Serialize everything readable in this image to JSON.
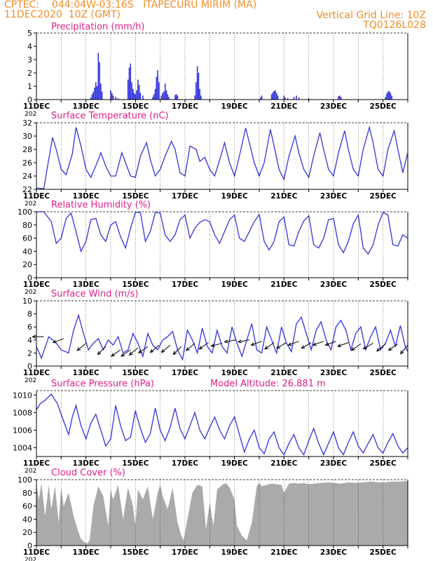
{
  "header": {
    "line1_left": "CPTEC:    044:04W-03:16S   ITAPECURU MIRIM (MA)",
    "line2_left": "11DEC2020  10Z (GMT)",
    "line1_right": "Vertical Grid Line: 10Z",
    "line2_right": "TQ0126L028",
    "cut_label": "202"
  },
  "colors": {
    "header": "#f08c28",
    "title": "#e0208a",
    "series": "#3333dd",
    "cloud": "#aaaaaa",
    "grid": "#000000"
  },
  "date_labels": [
    "11DEC",
    "13DEC",
    "15DEC",
    "17DEC",
    "19DEC",
    "21DEC",
    "23DEC",
    "25DEC"
  ],
  "chart_data": [
    {
      "type": "bar",
      "title": "Precipitation (mm/h)",
      "ylim": [
        0,
        5
      ],
      "yticks": [
        "0",
        "1",
        "2",
        "3",
        "4",
        "5"
      ],
      "days": 15,
      "x": [
        2.2,
        2.25,
        2.3,
        2.35,
        2.4,
        2.45,
        2.5,
        2.55,
        2.6,
        2.65,
        3.0,
        3.05,
        3.1,
        3.2,
        3.3,
        3.7,
        3.75,
        3.8,
        3.85,
        3.9,
        3.95,
        4.0,
        4.05,
        4.1,
        4.15,
        4.2,
        4.3,
        4.7,
        4.75,
        4.8,
        4.85,
        4.9,
        4.95,
        5.05,
        5.1,
        5.15,
        5.2,
        5.25,
        5.3,
        5.35,
        5.6,
        5.65,
        5.7,
        6.4,
        6.45,
        6.5,
        6.55,
        6.6,
        6.65,
        9.05,
        9.1,
        9.5,
        9.55,
        9.6,
        9.65,
        9.7,
        9.75,
        10.0,
        10.05,
        10.15,
        10.4,
        10.5,
        10.6,
        11.0,
        12.2,
        12.25,
        12.3,
        14.1,
        14.15,
        14.2,
        14.25,
        14.3,
        14.35
      ],
      "values": [
        0.15,
        0.4,
        0.6,
        0.9,
        1.3,
        1.0,
        3.5,
        2.8,
        1.2,
        0.6,
        0.7,
        0.5,
        0.3,
        0.2,
        0.1,
        1.5,
        2.4,
        2.7,
        1.3,
        0.8,
        0.5,
        0.4,
        0.7,
        1.5,
        1.1,
        0.5,
        0.3,
        0.2,
        0.4,
        0.8,
        1.7,
        2.2,
        1.3,
        0.3,
        0.5,
        0.6,
        1.2,
        0.7,
        0.4,
        0.2,
        0.35,
        0.4,
        0.3,
        0.3,
        1.3,
        2.5,
        2.0,
        0.8,
        0.3,
        0.15,
        0.3,
        0.4,
        0.55,
        0.65,
        0.7,
        0.5,
        0.3,
        0.3,
        0.15,
        0.1,
        0.2,
        0.3,
        0.15,
        0.1,
        0.25,
        0.3,
        0.2,
        0.2,
        0.45,
        0.6,
        0.65,
        0.5,
        0.3
      ]
    },
    {
      "type": "line",
      "title": "Surface Temperature (nC)",
      "ylim": [
        22,
        32
      ],
      "yticks": [
        "22",
        "24",
        "26",
        "28",
        "30",
        "32"
      ],
      "days": 15,
      "x": [
        0,
        0.3,
        0.45,
        0.65,
        0.8,
        1.0,
        1.2,
        1.45,
        1.6,
        1.8,
        2.0,
        2.2,
        2.45,
        2.6,
        2.8,
        3.0,
        3.2,
        3.45,
        3.6,
        3.8,
        4.0,
        4.2,
        4.45,
        4.6,
        4.8,
        5.0,
        5.2,
        5.45,
        5.6,
        5.8,
        6.0,
        6.2,
        6.45,
        6.6,
        6.8,
        7.0,
        7.2,
        7.45,
        7.6,
        7.8,
        8.0,
        8.2,
        8.45,
        8.6,
        8.8,
        9.0,
        9.2,
        9.45,
        9.6,
        9.8,
        10.0,
        10.2,
        10.45,
        10.6,
        10.8,
        11.0,
        11.2,
        11.45,
        11.6,
        11.8,
        12.0,
        12.2,
        12.45,
        12.6,
        12.8,
        13.0,
        13.2,
        13.45,
        13.6,
        13.8,
        14.0,
        14.2,
        14.45,
        14.6,
        14.8,
        15.0
      ],
      "values": [
        22.2,
        22.1,
        25.5,
        29.8,
        28.0,
        25.0,
        24.2,
        27.3,
        31.3,
        28.5,
        25.0,
        23.8,
        26.0,
        27.5,
        25.5,
        24.0,
        24.0,
        27.5,
        26.0,
        24.0,
        23.8,
        27.0,
        29.0,
        26.5,
        24.0,
        25.0,
        27.0,
        29.2,
        28.0,
        24.5,
        24.0,
        28.5,
        28.0,
        26.2,
        26.8,
        25.0,
        24.0,
        27.0,
        29.0,
        26.0,
        24.0,
        27.0,
        31.2,
        29.0,
        26.0,
        24.0,
        26.0,
        31.0,
        28.5,
        25.0,
        23.5,
        27.0,
        30.0,
        27.5,
        25.0,
        23.8,
        27.0,
        30.5,
        28.0,
        25.0,
        24.0,
        27.5,
        30.8,
        28.0,
        25.0,
        24.0,
        28.0,
        31.3,
        29.0,
        25.0,
        24.0,
        28.0,
        30.8,
        28.0,
        24.5,
        27.5
      ]
    },
    {
      "type": "line",
      "title": "Relative Humidity (%)",
      "ylim": [
        0,
        100
      ],
      "yticks": [
        "0",
        "20",
        "40",
        "60",
        "80",
        "100"
      ],
      "days": 15,
      "x": [
        0,
        0.3,
        0.6,
        0.8,
        1.0,
        1.2,
        1.4,
        1.6,
        1.8,
        2.0,
        2.2,
        2.4,
        2.6,
        2.8,
        3.0,
        3.2,
        3.4,
        3.6,
        3.8,
        4.0,
        4.2,
        4.4,
        4.6,
        4.8,
        5.0,
        5.2,
        5.4,
        5.6,
        5.8,
        6.0,
        6.2,
        6.4,
        6.6,
        6.8,
        7.0,
        7.2,
        7.4,
        7.6,
        7.8,
        8.0,
        8.2,
        8.4,
        8.6,
        8.8,
        9.0,
        9.2,
        9.4,
        9.6,
        9.8,
        10.0,
        10.2,
        10.4,
        10.6,
        10.8,
        11.0,
        11.2,
        11.4,
        11.6,
        11.8,
        12.0,
        12.2,
        12.4,
        12.6,
        12.8,
        13.0,
        13.2,
        13.4,
        13.6,
        13.8,
        14.0,
        14.2,
        14.4,
        14.6,
        14.8,
        15.0
      ],
      "values": [
        100,
        100,
        85,
        52,
        60,
        90,
        98,
        70,
        40,
        55,
        88,
        90,
        65,
        55,
        80,
        85,
        62,
        45,
        75,
        99,
        99,
        55,
        70,
        99,
        98,
        65,
        55,
        65,
        88,
        95,
        60,
        75,
        84,
        88,
        85,
        65,
        52,
        70,
        88,
        95,
        60,
        55,
        70,
        85,
        96,
        55,
        42,
        55,
        85,
        92,
        50,
        48,
        70,
        86,
        94,
        50,
        45,
        60,
        88,
        90,
        50,
        38,
        55,
        82,
        95,
        45,
        36,
        50,
        80,
        99,
        95,
        50,
        48,
        65,
        60
      ]
    },
    {
      "type": "line",
      "title": "Surface Wind (m/s)",
      "ylim": [
        0,
        10
      ],
      "yticks": [
        "0",
        "2",
        "4",
        "6",
        "8",
        "10"
      ],
      "days": 15,
      "x": [
        0,
        0.2,
        0.5,
        0.8,
        1.0,
        1.3,
        1.5,
        1.7,
        1.9,
        2.1,
        2.3,
        2.5,
        2.7,
        2.9,
        3.1,
        3.3,
        3.5,
        3.7,
        3.9,
        4.1,
        4.3,
        4.5,
        4.7,
        4.9,
        5.1,
        5.3,
        5.5,
        5.7,
        5.9,
        6.1,
        6.3,
        6.5,
        6.7,
        6.9,
        7.1,
        7.3,
        7.5,
        7.7,
        7.9,
        8.1,
        8.3,
        8.5,
        8.7,
        8.9,
        9.1,
        9.3,
        9.5,
        9.7,
        9.9,
        10.1,
        10.3,
        10.5,
        10.7,
        10.9,
        11.1,
        11.3,
        11.5,
        11.7,
        11.9,
        12.1,
        12.3,
        12.5,
        12.7,
        12.9,
        13.1,
        13.3,
        13.5,
        13.7,
        13.9,
        14.1,
        14.3,
        14.5,
        14.7,
        14.9,
        15.0
      ],
      "values": [
        3.0,
        1.2,
        4.5,
        3.5,
        2.5,
        2.0,
        5.5,
        7.8,
        5.0,
        2.5,
        3.5,
        4.2,
        2.5,
        4.0,
        3.2,
        4.5,
        2.0,
        2.5,
        5.0,
        3.5,
        1.5,
        5.0,
        3.2,
        2.5,
        4.0,
        4.5,
        5.3,
        2.5,
        1.0,
        5.5,
        4.0,
        2.0,
        5.8,
        3.0,
        2.0,
        5.5,
        3.0,
        2.0,
        6.0,
        3.5,
        1.5,
        4.0,
        6.5,
        2.5,
        2.0,
        6.0,
        4.0,
        2.0,
        6.0,
        3.5,
        2.2,
        6.5,
        7.5,
        5.0,
        2.5,
        5.5,
        6.8,
        4.0,
        2.5,
        6.0,
        7.0,
        5.5,
        2.5,
        5.0,
        6.0,
        2.5,
        4.5,
        6.0,
        2.5,
        3.5,
        5.5,
        3.0,
        6.2,
        3.0,
        2.2
      ],
      "arrows": {
        "x": [
          0.3,
          1.1,
          2.0,
          2.8,
          3.4,
          3.8,
          4.1,
          4.5,
          4.95,
          5.4,
          5.85,
          6.4,
          6.95,
          7.5,
          8.05,
          8.6,
          9.1,
          9.6,
          10.1,
          10.6,
          11.1,
          11.6,
          12.1,
          12.6,
          13.1,
          13.6,
          14.1,
          14.6,
          15.0
        ],
        "dir_deg": [
          180,
          200,
          220,
          225,
          215,
          215,
          220,
          215,
          220,
          220,
          225,
          220,
          215,
          195,
          190,
          190,
          200,
          215,
          210,
          200,
          210,
          200,
          200,
          200,
          215,
          210,
          220,
          215,
          230
        ],
        "speed": [
          4.5,
          4.2,
          3.5,
          3.0,
          2.5,
          2.5,
          2.8,
          3.0,
          3.2,
          3.2,
          3.0,
          3.5,
          3.6,
          3.5,
          4.0,
          4.0,
          3.8,
          3.6,
          3.6,
          3.8,
          3.6,
          3.8,
          3.8,
          3.6,
          3.4,
          3.5,
          3.4,
          3.4,
          3.2
        ]
      }
    },
    {
      "type": "line",
      "title": "Surface Pressure (hPa)",
      "annotation": "Model Altitude:  26.881  m",
      "ylim": [
        1003,
        1010.5
      ],
      "yticks": [
        "1004",
        "1006",
        "1008",
        "1010"
      ],
      "days": 15,
      "x": [
        0,
        0.15,
        0.35,
        0.6,
        0.85,
        1.1,
        1.3,
        1.45,
        1.6,
        1.8,
        2.0,
        2.2,
        2.4,
        2.6,
        2.8,
        3.0,
        3.2,
        3.4,
        3.6,
        3.8,
        4.0,
        4.2,
        4.4,
        4.6,
        4.8,
        5.0,
        5.2,
        5.4,
        5.6,
        5.8,
        6.0,
        6.2,
        6.4,
        6.6,
        6.8,
        7.0,
        7.2,
        7.4,
        7.6,
        7.8,
        8.0,
        8.2,
        8.4,
        8.6,
        8.8,
        9.0,
        9.2,
        9.4,
        9.6,
        9.8,
        10.0,
        10.2,
        10.4,
        10.6,
        10.8,
        11.0,
        11.2,
        11.4,
        11.6,
        11.8,
        12.0,
        12.2,
        12.4,
        12.6,
        12.8,
        13.0,
        13.2,
        13.4,
        13.6,
        13.8,
        14.0,
        14.2,
        14.4,
        14.6,
        14.8,
        15.0
      ],
      "values": [
        1008.3,
        1009.0,
        1009.4,
        1010.1,
        1009.0,
        1007.0,
        1005.5,
        1007.5,
        1008.8,
        1006.5,
        1005.0,
        1006.8,
        1007.8,
        1006.0,
        1004.2,
        1005.0,
        1008.8,
        1006.5,
        1004.8,
        1005.2,
        1008.2,
        1006.2,
        1004.6,
        1005.6,
        1008.5,
        1006.0,
        1004.8,
        1006.3,
        1008.5,
        1006.2,
        1005.0,
        1006.5,
        1008.0,
        1006.0,
        1005.0,
        1006.3,
        1007.5,
        1006.0,
        1005.0,
        1006.5,
        1007.5,
        1005.5,
        1003.5,
        1005.0,
        1006.0,
        1004.0,
        1003.3,
        1005.0,
        1005.8,
        1004.0,
        1003.2,
        1004.5,
        1005.5,
        1004.0,
        1003.2,
        1004.8,
        1006.2,
        1004.5,
        1003.2,
        1004.5,
        1005.8,
        1004.0,
        1003.2,
        1004.6,
        1005.8,
        1004.2,
        1003.4,
        1004.5,
        1005.5,
        1004.0,
        1003.4,
        1004.6,
        1005.6,
        1004.2,
        1003.4,
        1004.0
      ]
    },
    {
      "type": "area",
      "title": "Cloud Cover (%)",
      "ylim": [
        0,
        100
      ],
      "yticks": [
        "0",
        "20",
        "40",
        "60",
        "80",
        "100"
      ],
      "days": 15,
      "x": [
        0,
        0.1,
        0.2,
        0.35,
        0.5,
        0.6,
        0.75,
        0.9,
        1.0,
        1.1,
        1.3,
        1.5,
        1.7,
        1.8,
        1.95,
        2.05,
        2.15,
        2.3,
        2.5,
        2.7,
        2.9,
        3.0,
        3.1,
        3.3,
        3.5,
        3.7,
        3.9,
        4.0,
        4.1,
        4.3,
        4.5,
        4.7,
        4.9,
        5.0,
        5.1,
        5.3,
        5.5,
        5.7,
        5.85,
        5.95,
        6.1,
        6.3,
        6.5,
        6.7,
        6.85,
        7.0,
        7.15,
        7.3,
        7.5,
        7.65,
        7.8,
        8.0,
        8.1,
        8.3,
        8.5,
        8.7,
        8.9,
        9.0,
        9.1,
        9.3,
        9.5,
        9.7,
        9.9,
        10.0,
        10.2,
        10.4,
        10.6,
        10.8,
        11.0,
        11.2,
        11.5,
        11.8,
        12.0,
        12.3,
        12.6,
        12.9,
        13.2,
        13.5,
        13.8,
        14.1,
        14.4,
        14.7,
        15.0
      ],
      "values": [
        92,
        70,
        95,
        45,
        92,
        55,
        90,
        35,
        88,
        60,
        80,
        45,
        20,
        10,
        5,
        3,
        8,
        60,
        90,
        75,
        30,
        85,
        70,
        92,
        40,
        88,
        60,
        30,
        85,
        70,
        90,
        40,
        80,
        92,
        75,
        55,
        88,
        35,
        15,
        8,
        40,
        80,
        92,
        90,
        25,
        65,
        30,
        85,
        92,
        95,
        88,
        70,
        30,
        15,
        8,
        35,
        90,
        95,
        90,
        92,
        94,
        93,
        92,
        80,
        94,
        95,
        94,
        95,
        93,
        94,
        95,
        96,
        95,
        94,
        96,
        95,
        96,
        97,
        96,
        96,
        97,
        97,
        98
      ]
    }
  ]
}
